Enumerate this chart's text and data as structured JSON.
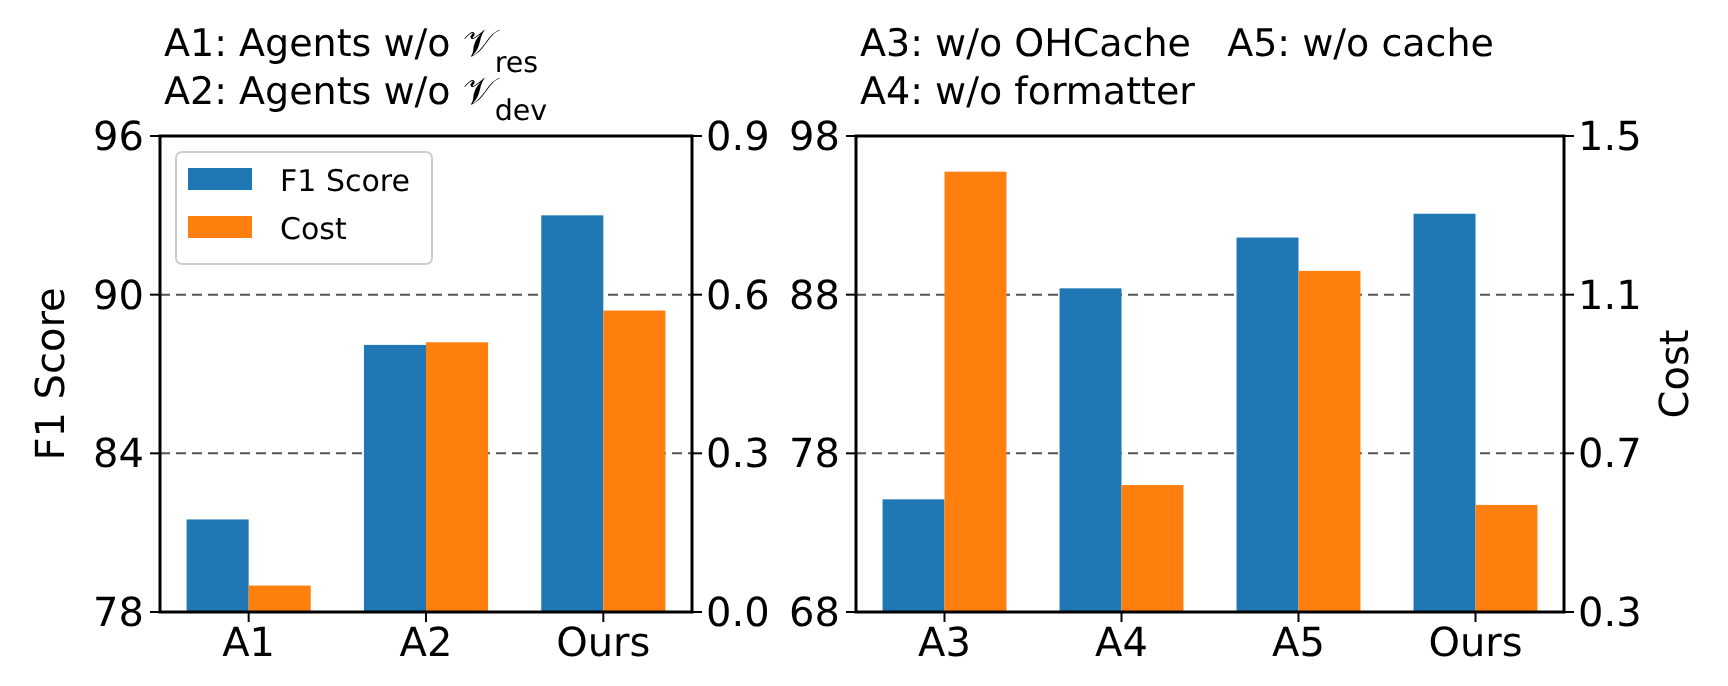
{
  "chart_data": [
    {
      "type": "bar",
      "title": "A1: Agents w/o 𝒱$_{res}$",
      "subtitle": "A2: Agents w/o 𝒱$_{dev}$",
      "ylabel": "F1 Score",
      "categories": [
        "A1",
        "A2",
        "Ours"
      ],
      "series": [
        {
          "name": "F1 Score",
          "color": "#1f77b4",
          "values": [
            81.5,
            88.1,
            93.0
          ]
        },
        {
          "name": "Cost",
          "color": "#ff7f0e",
          "axis": "y2",
          "values": [
            0.05,
            0.51,
            0.57
          ]
        }
      ],
      "ylim": [
        78,
        96
      ],
      "yticks": [
        78,
        84,
        90,
        96
      ],
      "y2lim": [
        0.0,
        0.9
      ],
      "y2ticks": [
        {
          "value": 0.0,
          "label": "0.0"
        },
        0.3,
        0.6,
        0.9
      ],
      "grid": "y",
      "legend": "top left"
    },
    {
      "type": "bar",
      "title": "A3: w/o OHCache   A5: w/o cache",
      "subtitle": "A4: w/o formatter",
      "y2label": "Cost",
      "categories": [
        "A3",
        "A4",
        "A5",
        "Ours"
      ],
      "series": [
        {
          "color": "#1f77b4",
          "values": [
            75.1,
            88.4,
            91.6,
            93.1
          ]
        },
        {
          "color": "#ff7f0e",
          "axis": "y2",
          "values": [
            1.41,
            0.62,
            1.16,
            0.57
          ]
        }
      ],
      "ylim": [
        68,
        98
      ],
      "yticks": [
        68,
        78,
        88,
        98
      ],
      "y2lim": [
        0.3,
        1.5
      ],
      "y2ticks": [
        0.3,
        0.7,
        1.1,
        1.5
      ],
      "grid": "y",
      "legend": false
    }
  ]
}
